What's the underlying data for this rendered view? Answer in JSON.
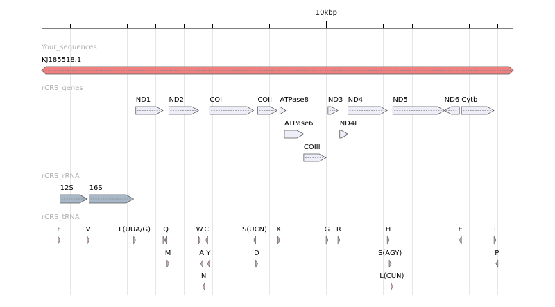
{
  "axis": {
    "label": "10kbp",
    "label_bp": 10000,
    "length_bp": 16569,
    "tick_step_bp": 1000
  },
  "colors": {
    "sequence": "#f08080",
    "gene": "#eeeef9",
    "rrna": "#a8b8c8",
    "trna": "#c7a9b9",
    "stroke": "#5a5a5a",
    "grid": "#e6e6e6"
  },
  "tracks": {
    "sequences": {
      "title": "Your_sequences",
      "items": [
        {
          "label": "KJ185518.1",
          "start": 0,
          "end": 16569,
          "row": 0
        }
      ]
    },
    "genes": {
      "title": "rCRS_genes",
      "items": [
        {
          "label": "ND1",
          "start": 3307,
          "end": 4262,
          "strand": 1,
          "row": 0
        },
        {
          "label": "ND2",
          "start": 4470,
          "end": 5511,
          "strand": 1,
          "row": 0
        },
        {
          "label": "COI",
          "start": 5904,
          "end": 7445,
          "strand": 1,
          "row": 0
        },
        {
          "label": "COII",
          "start": 7586,
          "end": 8269,
          "strand": 1,
          "row": 0
        },
        {
          "label": "ATPase8",
          "start": 8366,
          "end": 8572,
          "strand": 1,
          "row": 0
        },
        {
          "label": "ATPase6",
          "start": 8527,
          "end": 9207,
          "strand": 1,
          "row": 1
        },
        {
          "label": "COIII",
          "start": 9207,
          "end": 9990,
          "strand": 1,
          "row": 2
        },
        {
          "label": "ND3",
          "start": 10059,
          "end": 10404,
          "strand": 1,
          "row": 0
        },
        {
          "label": "ND4L",
          "start": 10470,
          "end": 10766,
          "strand": 1,
          "row": 1
        },
        {
          "label": "ND4",
          "start": 10760,
          "end": 12137,
          "strand": 1,
          "row": 0
        },
        {
          "label": "ND5",
          "start": 12337,
          "end": 14148,
          "strand": 1,
          "row": 0
        },
        {
          "label": "ND6",
          "start": 14149,
          "end": 14673,
          "strand": -1,
          "row": 0
        },
        {
          "label": "Cytb",
          "start": 14747,
          "end": 15887,
          "strand": 1,
          "row": 0
        }
      ]
    },
    "rrna": {
      "title": "rCRS_rRNA",
      "items": [
        {
          "label": "12S",
          "start": 648,
          "end": 1601,
          "strand": 1,
          "row": 0
        },
        {
          "label": "16S",
          "start": 1671,
          "end": 3229,
          "strand": 1,
          "row": 0
        }
      ]
    },
    "trna": {
      "title": "rCRS_tRNA",
      "items": [
        {
          "label": "F",
          "start": 577,
          "end": 647,
          "strand": 1,
          "row": 0
        },
        {
          "label": "V",
          "start": 1602,
          "end": 1670,
          "strand": 1,
          "row": 0
        },
        {
          "label": "L(UUA/G)",
          "start": 3230,
          "end": 3304,
          "strand": 1,
          "row": 0
        },
        {
          "start": 4263,
          "end": 4331,
          "strand": 1,
          "row": 0
        },
        {
          "label": "Q",
          "start": 4329,
          "end": 4400,
          "strand": -1,
          "row": 0
        },
        {
          "label": "M",
          "start": 4402,
          "end": 4469,
          "strand": 1,
          "row": 1
        },
        {
          "label": "W",
          "start": 5512,
          "end": 5579,
          "strand": 1,
          "row": 0
        },
        {
          "label": "A",
          "start": 5587,
          "end": 5655,
          "strand": -1,
          "row": 1
        },
        {
          "label": "N",
          "start": 5657,
          "end": 5729,
          "strand": -1,
          "row": 2
        },
        {
          "label": "C",
          "start": 5761,
          "end": 5826,
          "strand": -1,
          "row": 0
        },
        {
          "label": "Y",
          "start": 5826,
          "end": 5891,
          "strand": -1,
          "row": 1
        },
        {
          "label": "S(UCN)",
          "start": 7446,
          "end": 7514,
          "strand": -1,
          "row": 0
        },
        {
          "label": "D",
          "start": 7518,
          "end": 7585,
          "strand": 1,
          "row": 1
        },
        {
          "label": "K",
          "start": 8295,
          "end": 8364,
          "strand": 1,
          "row": 0
        },
        {
          "label": "G",
          "start": 9991,
          "end": 10058,
          "strand": 1,
          "row": 0
        },
        {
          "label": "R",
          "start": 10405,
          "end": 10469,
          "strand": 1,
          "row": 0
        },
        {
          "label": "H",
          "start": 12138,
          "end": 12206,
          "strand": 1,
          "row": 0
        },
        {
          "label": "S(AGY)",
          "start": 12207,
          "end": 12265,
          "strand": 1,
          "row": 1
        },
        {
          "label": "L(CUN)",
          "start": 12266,
          "end": 12336,
          "strand": 1,
          "row": 2
        },
        {
          "label": "E",
          "start": 14674,
          "end": 14742,
          "strand": -1,
          "row": 0
        },
        {
          "label": "T",
          "start": 15888,
          "end": 15953,
          "strand": 1,
          "row": 0
        },
        {
          "label": "P",
          "start": 15956,
          "end": 16023,
          "strand": -1,
          "row": 1
        }
      ]
    }
  }
}
